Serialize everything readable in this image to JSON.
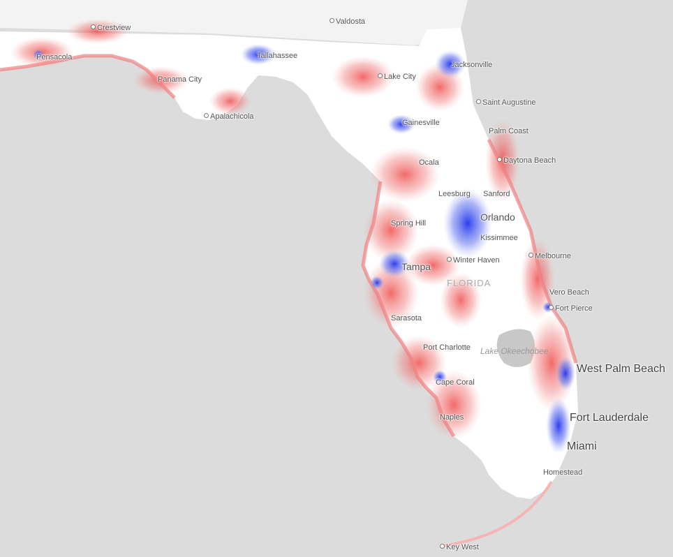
{
  "map": {
    "colors": {
      "water": "#dcdcdc",
      "land": "#ffffff",
      "neighbor_land": "#f3f3f3",
      "lake": "#c8c8c8",
      "red": "#ee5a5a",
      "blue": "#4455ee"
    },
    "region_label": "FLORIDA",
    "water_label": "Lake Okeechobee",
    "cities": [
      {
        "id": "crestview",
        "name": "Crestview",
        "dot": false
      },
      {
        "id": "valdosta",
        "name": "Valdosta",
        "dot": true
      },
      {
        "id": "pensacola",
        "name": "Pensacola",
        "dot": false
      },
      {
        "id": "tallahassee",
        "name": "Tallahassee",
        "dot": false
      },
      {
        "id": "jacksonville",
        "name": "Jacksonville",
        "dot": false
      },
      {
        "id": "lake-city",
        "name": "Lake City",
        "dot": true
      },
      {
        "id": "panama-city",
        "name": "Panama City",
        "dot": false
      },
      {
        "id": "saint-augustine",
        "name": "Saint Augustine",
        "dot": true
      },
      {
        "id": "apalachicola",
        "name": "Apalachicola",
        "dot": true
      },
      {
        "id": "gainesville",
        "name": "Gainesville",
        "dot": false
      },
      {
        "id": "palm-coast",
        "name": "Palm Coast",
        "dot": false
      },
      {
        "id": "ocala",
        "name": "Ocala",
        "dot": false
      },
      {
        "id": "daytona-beach",
        "name": "Daytona Beach",
        "dot": true
      },
      {
        "id": "leesburg",
        "name": "Leesburg",
        "dot": false
      },
      {
        "id": "sanford",
        "name": "Sanford",
        "dot": false
      },
      {
        "id": "orlando",
        "name": "Orlando",
        "dot": false
      },
      {
        "id": "spring-hill",
        "name": "Spring Hill",
        "dot": false
      },
      {
        "id": "kissimmee",
        "name": "Kissimmee",
        "dot": false
      },
      {
        "id": "melbourne",
        "name": "Melbourne",
        "dot": true
      },
      {
        "id": "tampa",
        "name": "Tampa",
        "dot": false
      },
      {
        "id": "winter-haven",
        "name": "Winter Haven",
        "dot": true
      },
      {
        "id": "vero-beach",
        "name": "Vero Beach",
        "dot": false
      },
      {
        "id": "fort-pierce",
        "name": "Fort Pierce",
        "dot": true
      },
      {
        "id": "sarasota",
        "name": "Sarasota",
        "dot": false
      },
      {
        "id": "port-charlotte",
        "name": "Port Charlotte",
        "dot": false
      },
      {
        "id": "west-palm-beach",
        "name": "West Palm Beach",
        "dot": false
      },
      {
        "id": "cape-coral",
        "name": "Cape Coral",
        "dot": false
      },
      {
        "id": "naples",
        "name": "Naples",
        "dot": false
      },
      {
        "id": "fort-lauderdale",
        "name": "Fort Lauderdale",
        "dot": false
      },
      {
        "id": "miami",
        "name": "Miami",
        "dot": false
      },
      {
        "id": "homestead",
        "name": "Homestead",
        "dot": false
      },
      {
        "id": "key-west",
        "name": "Key West",
        "dot": true
      }
    ]
  }
}
